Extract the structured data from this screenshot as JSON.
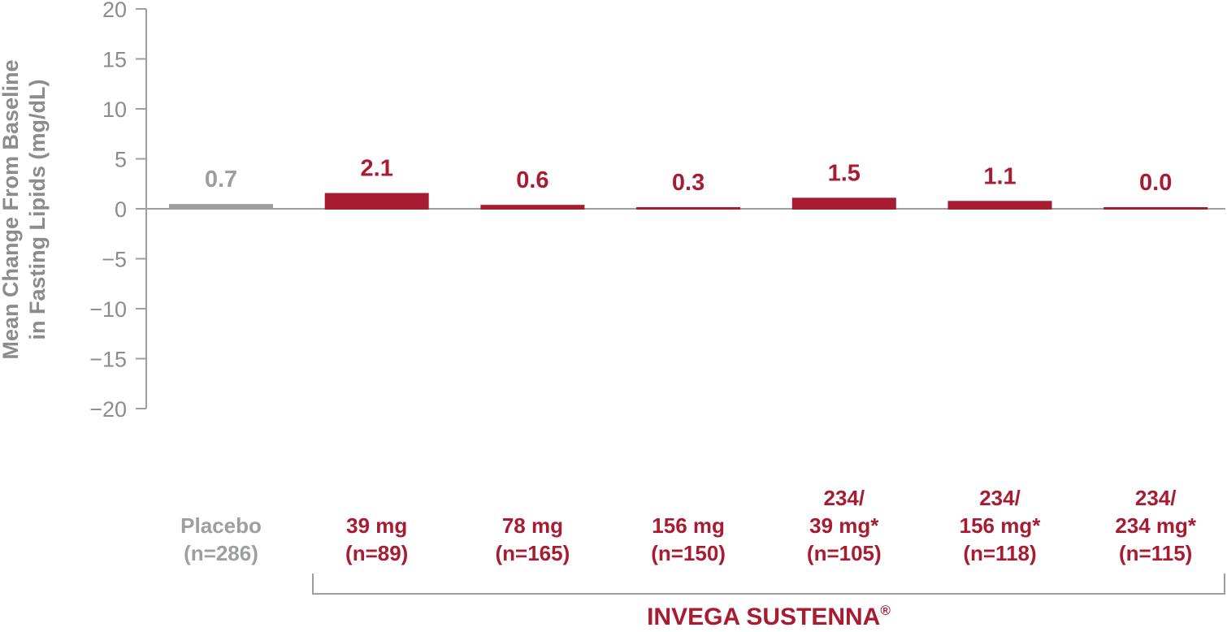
{
  "chart_data": {
    "type": "bar",
    "ylabel_lines": [
      "Mean Change From Baseline",
      "in Fasting Lipids (mg/dL)"
    ],
    "ylim": [
      -20,
      20
    ],
    "yticks": [
      "20",
      "15",
      "10",
      "5",
      "0",
      "−5",
      "−10",
      "−15",
      "−20"
    ],
    "categories": [
      {
        "lines": [
          "Placebo",
          "(n=286)"
        ],
        "value": 0.7,
        "value_label": "0.7",
        "color": "#9d9ea0"
      },
      {
        "lines": [
          "39 mg",
          "(n=89)"
        ],
        "value": 2.1,
        "value_label": "2.1",
        "color": "#a71c30"
      },
      {
        "lines": [
          "78 mg",
          "(n=165)"
        ],
        "value": 0.6,
        "value_label": "0.6",
        "color": "#a71c30"
      },
      {
        "lines": [
          "156 mg",
          "(n=150)"
        ],
        "value": 0.3,
        "value_label": "0.3",
        "color": "#a71c30"
      },
      {
        "lines": [
          "234/",
          "39 mg*",
          "(n=105)"
        ],
        "value": 1.5,
        "value_label": "1.5",
        "color": "#a71c30"
      },
      {
        "lines": [
          "234/",
          "156 mg*",
          "(n=118)"
        ],
        "value": 1.1,
        "value_label": "1.1",
        "color": "#a71c30"
      },
      {
        "lines": [
          "234/",
          "234 mg*",
          "(n=115)"
        ],
        "value": 0.0,
        "value_label": "0.0",
        "color": "#a71c30"
      }
    ],
    "group": {
      "label": "INVEGA SUSTENNA",
      "mark": "®",
      "spans_categories": [
        1,
        6
      ]
    },
    "colors": {
      "placebo": "#9d9ea0",
      "accent": "#a71c30",
      "axis": "#9d9ea0",
      "label": "#8b8c8e"
    }
  }
}
